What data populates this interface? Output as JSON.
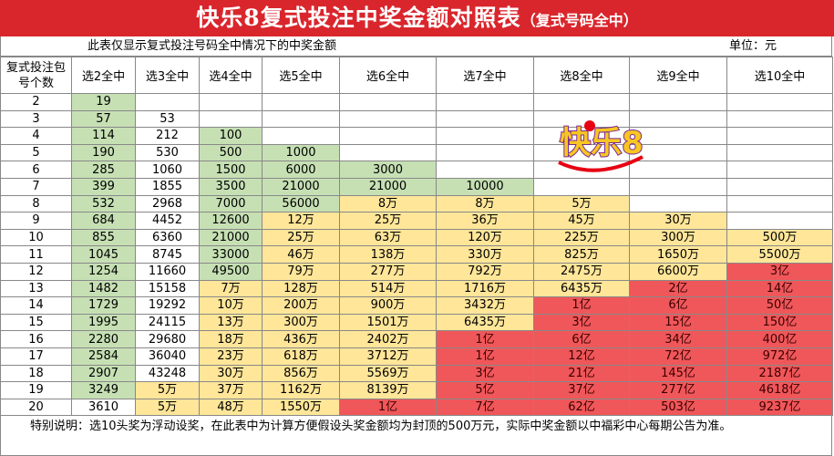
{
  "header": {
    "title": "快乐8复式投注中奖金额对照表",
    "title_note": "（复式号码全中）",
    "subtitle": "此表仅显示复式投注号码全中情况下的中奖金额",
    "unit": "单位：元"
  },
  "logo": "快乐8",
  "palette": {
    "g": "#c6e0b4",
    "w": "#ffffff",
    "y": "#ffe699",
    "r": "#f0575a"
  },
  "table": {
    "columns": [
      "复式投注包号个数",
      "选2全中",
      "选3全中",
      "选4全中",
      "选5全中",
      "选6全中",
      "选7全中",
      "选8全中",
      "选9全中",
      "选10全中"
    ],
    "rows": [
      {
        "label": "2",
        "cells": [
          "19",
          null,
          null,
          null,
          null,
          null,
          null,
          null,
          null
        ],
        "fills": [
          "g",
          "w",
          "w",
          "w",
          "w",
          "w",
          "w",
          "w",
          "w"
        ]
      },
      {
        "label": "3",
        "cells": [
          "57",
          "53",
          null,
          null,
          null,
          null,
          null,
          null,
          null
        ],
        "fills": [
          "g",
          "w",
          "w",
          "w",
          "w",
          "w",
          "w",
          "w",
          "w"
        ]
      },
      {
        "label": "4",
        "cells": [
          "114",
          "212",
          "100",
          null,
          null,
          null,
          null,
          null,
          null
        ],
        "fills": [
          "g",
          "w",
          "g",
          "w",
          "w",
          "w",
          "w",
          "w",
          "w"
        ]
      },
      {
        "label": "5",
        "cells": [
          "190",
          "530",
          "500",
          "1000",
          null,
          null,
          null,
          null,
          null
        ],
        "fills": [
          "g",
          "w",
          "g",
          "g",
          "w",
          "w",
          "w",
          "w",
          "w"
        ]
      },
      {
        "label": "6",
        "cells": [
          "285",
          "1060",
          "1500",
          "6000",
          "3000",
          null,
          null,
          null,
          null
        ],
        "fills": [
          "g",
          "w",
          "g",
          "g",
          "g",
          "w",
          "w",
          "w",
          "w"
        ]
      },
      {
        "label": "7",
        "cells": [
          "399",
          "1855",
          "3500",
          "21000",
          "21000",
          "10000",
          null,
          null,
          null
        ],
        "fills": [
          "g",
          "w",
          "g",
          "g",
          "g",
          "g",
          "w",
          "w",
          "w"
        ]
      },
      {
        "label": "8",
        "cells": [
          "532",
          "2968",
          "7000",
          "56000",
          "8万",
          "8万",
          "5万",
          null,
          null
        ],
        "fills": [
          "g",
          "w",
          "g",
          "g",
          "y",
          "y",
          "y",
          "w",
          "w"
        ]
      },
      {
        "label": "9",
        "cells": [
          "684",
          "4452",
          "12600",
          "12万",
          "25万",
          "36万",
          "45万",
          "30万",
          null
        ],
        "fills": [
          "g",
          "w",
          "g",
          "y",
          "y",
          "y",
          "y",
          "y",
          "w"
        ]
      },
      {
        "label": "10",
        "cells": [
          "855",
          "6360",
          "21000",
          "25万",
          "63万",
          "120万",
          "225万",
          "300万",
          "500万"
        ],
        "fills": [
          "g",
          "w",
          "g",
          "y",
          "y",
          "y",
          "y",
          "y",
          "y"
        ]
      },
      {
        "label": "11",
        "cells": [
          "1045",
          "8745",
          "33000",
          "46万",
          "138万",
          "330万",
          "825万",
          "1650万",
          "5500万"
        ],
        "fills": [
          "g",
          "w",
          "g",
          "y",
          "y",
          "y",
          "y",
          "y",
          "y"
        ]
      },
      {
        "label": "12",
        "cells": [
          "1254",
          "11660",
          "49500",
          "79万",
          "277万",
          "792万",
          "2475万",
          "6600万",
          "3亿"
        ],
        "fills": [
          "g",
          "w",
          "g",
          "y",
          "y",
          "y",
          "y",
          "y",
          "r"
        ]
      },
      {
        "label": "13",
        "cells": [
          "1482",
          "15158",
          "7万",
          "128万",
          "514万",
          "1716万",
          "6435万",
          "2亿",
          "14亿"
        ],
        "fills": [
          "g",
          "w",
          "y",
          "y",
          "y",
          "y",
          "y",
          "r",
          "r"
        ]
      },
      {
        "label": "14",
        "cells": [
          "1729",
          "19292",
          "10万",
          "200万",
          "900万",
          "3432万",
          "1亿",
          "6亿",
          "50亿"
        ],
        "fills": [
          "g",
          "w",
          "y",
          "y",
          "y",
          "y",
          "r",
          "r",
          "r"
        ]
      },
      {
        "label": "15",
        "cells": [
          "1995",
          "24115",
          "13万",
          "300万",
          "1501万",
          "6435万",
          "3亿",
          "15亿",
          "150亿"
        ],
        "fills": [
          "g",
          "w",
          "y",
          "y",
          "y",
          "y",
          "r",
          "r",
          "r"
        ]
      },
      {
        "label": "16",
        "cells": [
          "2280",
          "29680",
          "18万",
          "436万",
          "2402万",
          "1亿",
          "6亿",
          "34亿",
          "400亿"
        ],
        "fills": [
          "g",
          "w",
          "y",
          "y",
          "y",
          "r",
          "r",
          "r",
          "r"
        ]
      },
      {
        "label": "17",
        "cells": [
          "2584",
          "36040",
          "23万",
          "618万",
          "3712万",
          "1亿",
          "12亿",
          "72亿",
          "972亿"
        ],
        "fills": [
          "g",
          "w",
          "y",
          "y",
          "y",
          "r",
          "r",
          "r",
          "r"
        ]
      },
      {
        "label": "18",
        "cells": [
          "2907",
          "43248",
          "30万",
          "856万",
          "5569万",
          "3亿",
          "21亿",
          "145亿",
          "2187亿"
        ],
        "fills": [
          "g",
          "w",
          "y",
          "y",
          "y",
          "r",
          "r",
          "r",
          "r"
        ]
      },
      {
        "label": "19",
        "cells": [
          "3249",
          "5万",
          "37万",
          "1162万",
          "8139万",
          "5亿",
          "37亿",
          "277亿",
          "4618亿"
        ],
        "fills": [
          "g",
          "y",
          "y",
          "y",
          "y",
          "r",
          "r",
          "r",
          "r"
        ]
      },
      {
        "label": "20",
        "cells": [
          "3610",
          "5万",
          "48万",
          "1550万",
          "1亿",
          "7亿",
          "62亿",
          "503亿",
          "9237亿"
        ],
        "fills": [
          "w",
          "y",
          "y",
          "y",
          "r",
          "r",
          "r",
          "r",
          "r"
        ]
      }
    ]
  },
  "footer": "特别说明：选10头奖为浮动设奖，在此表中为计算方便假设头奖金额均为封顶的500万元，实际中奖金额以中福彩中心每期公告为准。"
}
